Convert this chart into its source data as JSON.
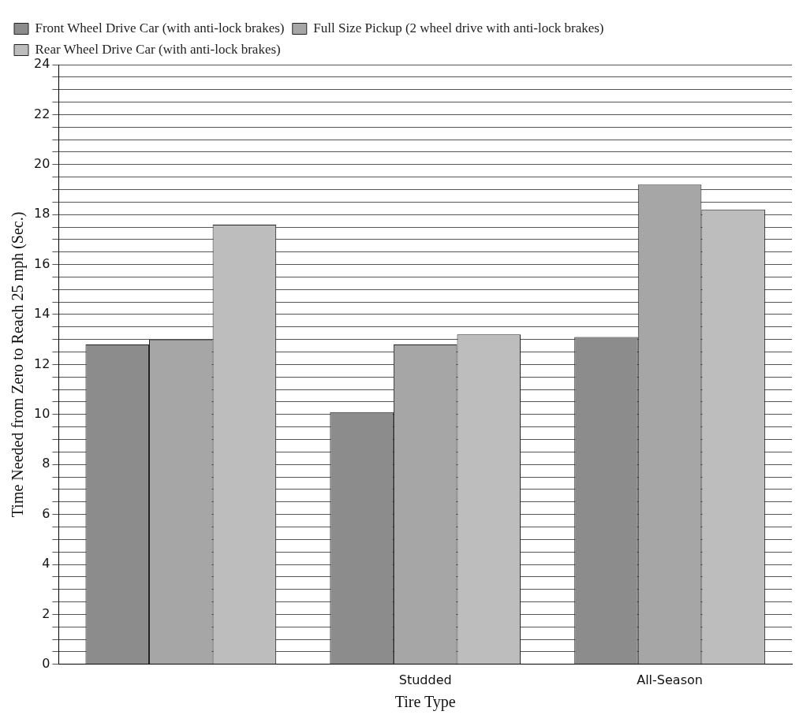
{
  "chart_data": {
    "type": "bar",
    "xlabel": "Tire Type",
    "ylabel": "Time Needed from Zero to Reach 25 mph (Sec.)",
    "categories": [
      null,
      "Studded",
      "All-Season"
    ],
    "series": [
      {
        "name": "Front Wheel Drive Car (with anti-lock brakes)",
        "color": "#8c8c8c",
        "values": [
          12.8,
          10.1,
          13.1
        ]
      },
      {
        "name": "Full Size Pickup (2 wheel drive with anti-lock brakes)",
        "color": "#a6a6a6",
        "values": [
          13.0,
          12.8,
          19.2
        ]
      },
      {
        "name": "Rear Wheel Drive Car (with anti-lock brakes)",
        "color": "#bdbdbd",
        "values": [
          17.6,
          13.2,
          18.2
        ]
      }
    ],
    "ylim": [
      0,
      24
    ],
    "yticks": [
      0,
      {
        "value": 0.5,
        "label": null
      },
      {
        "value": 1,
        "label": null
      },
      {
        "value": 1.5,
        "label": null
      },
      2,
      {
        "value": 2.5,
        "label": null
      },
      {
        "value": 3,
        "label": null
      },
      {
        "value": 3.5,
        "label": null
      },
      4,
      {
        "value": 4.5,
        "label": null
      },
      {
        "value": 5,
        "label": null
      },
      {
        "value": 5.5,
        "label": null
      },
      6,
      {
        "value": 6.5,
        "label": null
      },
      {
        "value": 7,
        "label": null
      },
      {
        "value": 7.5,
        "label": null
      },
      8,
      {
        "value": 8.5,
        "label": null
      },
      {
        "value": 9,
        "label": null
      },
      {
        "value": 9.5,
        "label": null
      },
      10,
      {
        "value": 10.5,
        "label": null
      },
      {
        "value": 11,
        "label": null
      },
      {
        "value": 11.5,
        "label": null
      },
      12,
      {
        "value": 12.5,
        "label": null
      },
      {
        "value": 13,
        "label": null
      },
      {
        "value": 13.5,
        "label": null
      },
      14,
      {
        "value": 14.5,
        "label": null
      },
      {
        "value": 15,
        "label": null
      },
      {
        "value": 15.5,
        "label": null
      },
      16,
      {
        "value": 16.5,
        "label": null
      },
      {
        "value": 17,
        "label": null
      },
      {
        "value": 17.5,
        "label": null
      },
      18,
      {
        "value": 18.5,
        "label": null
      },
      {
        "value": 19,
        "label": null
      },
      {
        "value": 19.5,
        "label": null
      },
      20,
      {
        "value": 20.5,
        "label": null
      },
      {
        "value": 21,
        "label": null
      },
      {
        "value": 21.5,
        "label": null
      },
      22,
      {
        "value": 22.5,
        "label": null
      },
      {
        "value": 23,
        "label": null
      },
      {
        "value": 23.5,
        "label": null
      },
      24
    ],
    "grid": "y",
    "legend": "top left"
  }
}
